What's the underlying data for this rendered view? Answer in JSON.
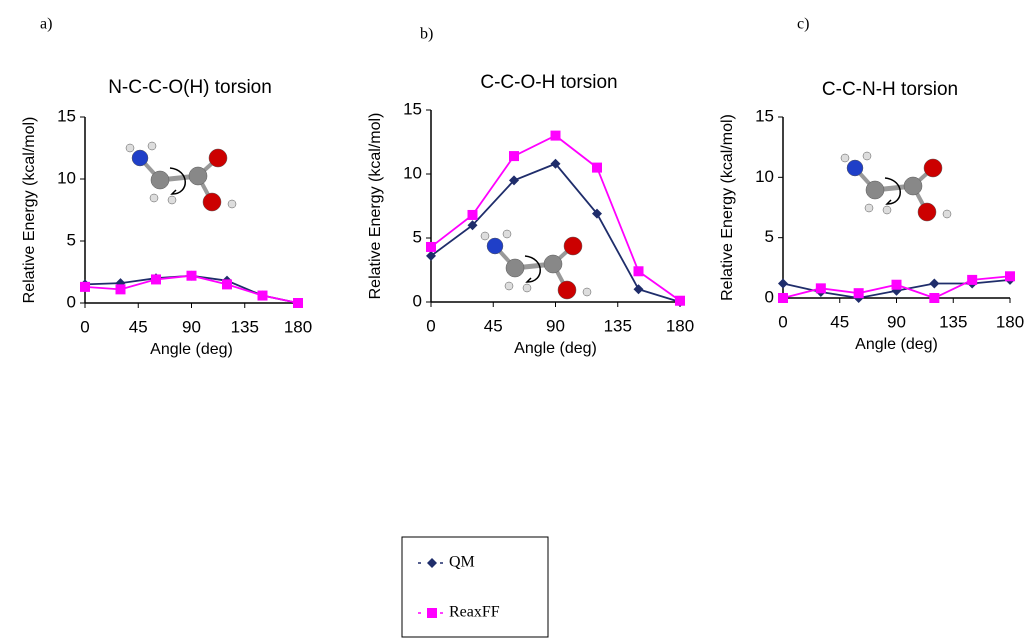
{
  "chart_data": [
    {
      "type": "line",
      "panel": "a)",
      "title": "N-C-C-O(H) torsion",
      "xlabel": "Angle (deg)",
      "ylabel": "Relative  Energy (kcal/mol)",
      "x": [
        0,
        30,
        60,
        90,
        120,
        150,
        180
      ],
      "xlim": [
        0,
        180
      ],
      "xticks": [
        0,
        45,
        90,
        135,
        180
      ],
      "ylim": [
        0,
        15
      ],
      "yticks": [
        0,
        5,
        10,
        15
      ],
      "series": [
        {
          "name": "QM",
          "color": "#1f2d6b",
          "marker": "diamond",
          "values": [
            1.5,
            1.6,
            2.0,
            2.2,
            1.8,
            0.6,
            0
          ]
        },
        {
          "name": "ReaxFF",
          "color": "#ff00ff",
          "marker": "square",
          "values": [
            1.3,
            1.1,
            1.9,
            2.2,
            1.5,
            0.6,
            0
          ]
        }
      ]
    },
    {
      "type": "line",
      "panel": "b)",
      "title": "C-C-O-H torsion",
      "xlabel": "Angle (deg)",
      "ylabel": "Relative Energy (kcal/mol)",
      "x": [
        0,
        30,
        60,
        90,
        120,
        150,
        180
      ],
      "xlim": [
        0,
        180
      ],
      "xticks": [
        0,
        45,
        90,
        135,
        180
      ],
      "ylim": [
        0,
        15
      ],
      "yticks": [
        0,
        5,
        10,
        15
      ],
      "series": [
        {
          "color": "#1f2d6b",
          "marker": "diamond",
          "values": [
            3.6,
            6.0,
            9.5,
            10.8,
            6.9,
            1.0,
            0
          ]
        },
        {
          "color": "#ff00ff",
          "marker": "square",
          "values": [
            4.3,
            6.8,
            11.4,
            13.0,
            10.5,
            2.4,
            0.1
          ]
        }
      ]
    },
    {
      "type": "line",
      "panel": "c)",
      "title": "C-C-N-H torsion",
      "xlabel": "Angle (deg)",
      "ylabel": "Relative  Energy (kcal/mol)",
      "x": [
        0,
        30,
        60,
        90,
        120,
        150,
        180
      ],
      "xlim": [
        0,
        180
      ],
      "xticks": [
        0,
        45,
        90,
        135,
        180
      ],
      "ylim": [
        0,
        15
      ],
      "yticks": [
        0,
        5,
        10,
        15
      ],
      "series": [
        {
          "color": "#1f2d6b",
          "marker": "diamond",
          "values": [
            1.2,
            0.5,
            0,
            0.6,
            1.2,
            1.2,
            1.5
          ]
        },
        {
          "color": "#ff00ff",
          "marker": "square",
          "values": [
            0,
            0.8,
            0.4,
            1.1,
            0,
            1.5,
            1.8
          ]
        }
      ]
    }
  ]
}
